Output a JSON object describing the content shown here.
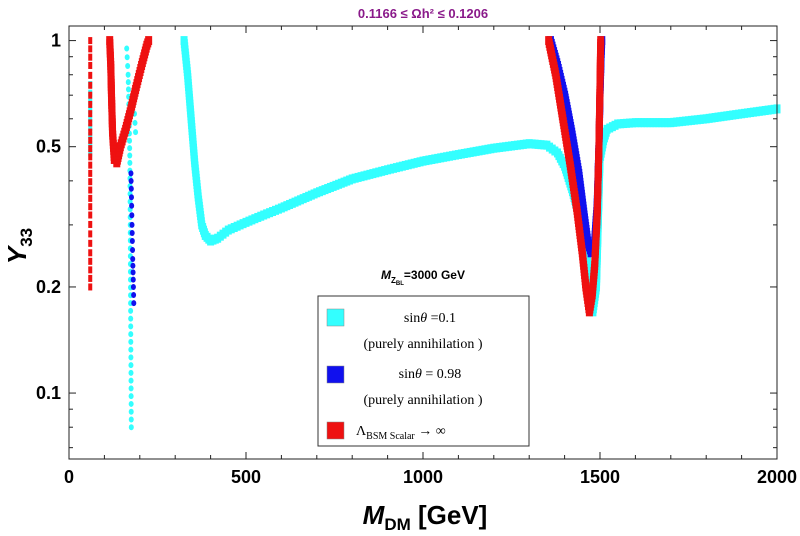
{
  "chart_data": {
    "type": "scatter",
    "title": "0.1166 ≤ Ωh² ≤ 0.1206",
    "title_color": "#8a1a8a",
    "xlabel": "M_DM [GeV]",
    "ylabel": "Y_33",
    "xlim": [
      0,
      2000
    ],
    "ylim": [
      0.065,
      1.1
    ],
    "yscale": "log",
    "x_ticks": [
      {
        "value": 0,
        "label": "0"
      },
      {
        "value": 500,
        "label": "500"
      },
      {
        "value": 1000,
        "label": "1000"
      },
      {
        "value": 1500,
        "label": "1500"
      },
      {
        "value": 2000,
        "label": "2000"
      }
    ],
    "y_ticks": [
      {
        "value": 0.1,
        "label": "0.1"
      },
      {
        "value": 0.2,
        "label": "0.2"
      },
      {
        "value": 0.5,
        "label": "0.5"
      },
      {
        "value": 1,
        "label": "1"
      }
    ],
    "annotation": "M_ZBL = 3000 GeV",
    "legend": {
      "position": "bottom-center",
      "entries": [
        {
          "label": "sinθ = 0.1",
          "sublabel": "(purely annihilation )",
          "color": "#33ffff"
        },
        {
          "label": "sinθ = 0.98",
          "sublabel": "(purely annihilation )",
          "color": "#1010ee"
        },
        {
          "label": "Λ_BSM Scalar → ∞",
          "sublabel": "",
          "color": "#ee1111"
        }
      ]
    },
    "series": [
      {
        "name": "sinθ = 0.1",
        "color": "#33ffff",
        "bands": [
          {
            "points": [
              [
                60,
                0.75
              ],
              [
                60,
                0.6
              ],
              [
                60,
                0.48
              ]
            ],
            "style": "dashed"
          },
          {
            "points": [
              [
                163,
                0.95
              ],
              [
                167,
                0.8
              ],
              [
                170,
                0.6
              ],
              [
                172,
                0.45
              ],
              [
                173,
                0.3
              ],
              [
                174,
                0.18
              ],
              [
                175,
                0.12
              ],
              [
                176,
                0.08
              ]
            ],
            "style": "dotted"
          },
          {
            "points": [
              [
                180,
                0.7
              ],
              [
                185,
                0.62
              ],
              [
                188,
                0.55
              ]
            ],
            "style": "dotted"
          },
          {
            "points": [
              [
                325,
                1.0
              ],
              [
                335,
                0.8
              ],
              [
                345,
                0.6
              ],
              [
                355,
                0.45
              ],
              [
                365,
                0.36
              ],
              [
                375,
                0.3
              ],
              [
                385,
                0.28
              ],
              [
                400,
                0.27
              ],
              [
                420,
                0.275
              ],
              [
                450,
                0.29
              ],
              [
                500,
                0.305
              ],
              [
                550,
                0.32
              ],
              [
                600,
                0.335
              ],
              [
                700,
                0.37
              ],
              [
                800,
                0.405
              ],
              [
                900,
                0.43
              ],
              [
                1000,
                0.455
              ],
              [
                1100,
                0.475
              ],
              [
                1200,
                0.495
              ],
              [
                1300,
                0.51
              ],
              [
                1350,
                0.505
              ],
              [
                1380,
                0.48
              ],
              [
                1400,
                0.44
              ],
              [
                1420,
                0.38
              ],
              [
                1440,
                0.32
              ],
              [
                1460,
                0.26
              ],
              [
                1470,
                0.21
              ],
              [
                1480,
                0.17
              ],
              [
                1490,
                0.2
              ],
              [
                1495,
                0.3
              ],
              [
                1500,
                0.46
              ],
              [
                1510,
                0.52
              ],
              [
                1520,
                0.56
              ],
              [
                1550,
                0.58
              ],
              [
                1600,
                0.585
              ],
              [
                1700,
                0.585
              ],
              [
                1800,
                0.6
              ],
              [
                1900,
                0.62
              ],
              [
                2000,
                0.64
              ]
            ],
            "style": "band"
          }
        ]
      },
      {
        "name": "sinθ = 0.98",
        "color": "#1010ee",
        "bands": [
          {
            "points": [
              [
                175,
                0.42
              ],
              [
                176,
                0.38
              ],
              [
                177,
                0.34
              ],
              [
                178,
                0.3
              ],
              [
                179,
                0.27
              ],
              [
                180,
                0.24
              ],
              [
                181,
                0.22
              ],
              [
                182,
                0.2
              ],
              [
                183,
                0.18
              ]
            ],
            "style": "dotted"
          },
          {
            "points": [
              [
                1360,
                1.0
              ],
              [
                1380,
                0.85
              ],
              [
                1400,
                0.7
              ],
              [
                1420,
                0.55
              ],
              [
                1440,
                0.42
              ],
              [
                1455,
                0.32
              ],
              [
                1465,
                0.27
              ],
              [
                1475,
                0.25
              ],
              [
                1485,
                0.27
              ],
              [
                1492,
                0.34
              ],
              [
                1497,
                0.5
              ],
              [
                1500,
                0.7
              ],
              [
                1503,
                0.9
              ],
              [
                1505,
                1.0
              ]
            ],
            "style": "band"
          }
        ]
      },
      {
        "name": "Λ_BSM Scalar → ∞",
        "color": "#ee1111",
        "bands": [
          {
            "points": [
              [
                60,
                1.0
              ],
              [
                60,
                0.85
              ],
              [
                60,
                0.7
              ],
              [
                60,
                0.55
              ],
              [
                60,
                0.42
              ],
              [
                60,
                0.32
              ],
              [
                60,
                0.25
              ],
              [
                60,
                0.2
              ]
            ],
            "style": "dashed"
          },
          {
            "points": [
              [
                115,
                1.0
              ],
              [
                118,
                0.85
              ],
              [
                120,
                0.7
              ],
              [
                123,
                0.55
              ],
              [
                128,
                0.46
              ],
              [
                135,
                0.45
              ],
              [
                145,
                0.5
              ],
              [
                160,
                0.56
              ],
              [
                175,
                0.64
              ],
              [
                190,
                0.74
              ],
              [
                205,
                0.85
              ],
              [
                220,
                0.97
              ],
              [
                225,
                1.0
              ]
            ],
            "style": "band"
          },
          {
            "points": [
              [
                1355,
                1.0
              ],
              [
                1375,
                0.8
              ],
              [
                1395,
                0.6
              ],
              [
                1415,
                0.45
              ],
              [
                1435,
                0.33
              ],
              [
                1450,
                0.25
              ],
              [
                1460,
                0.2
              ],
              [
                1470,
                0.17
              ],
              [
                1478,
                0.19
              ],
              [
                1485,
                0.23
              ],
              [
                1492,
                0.32
              ],
              [
                1497,
                0.5
              ],
              [
                1500,
                0.75
              ],
              [
                1502,
                1.0
              ]
            ],
            "style": "band"
          }
        ]
      }
    ]
  }
}
